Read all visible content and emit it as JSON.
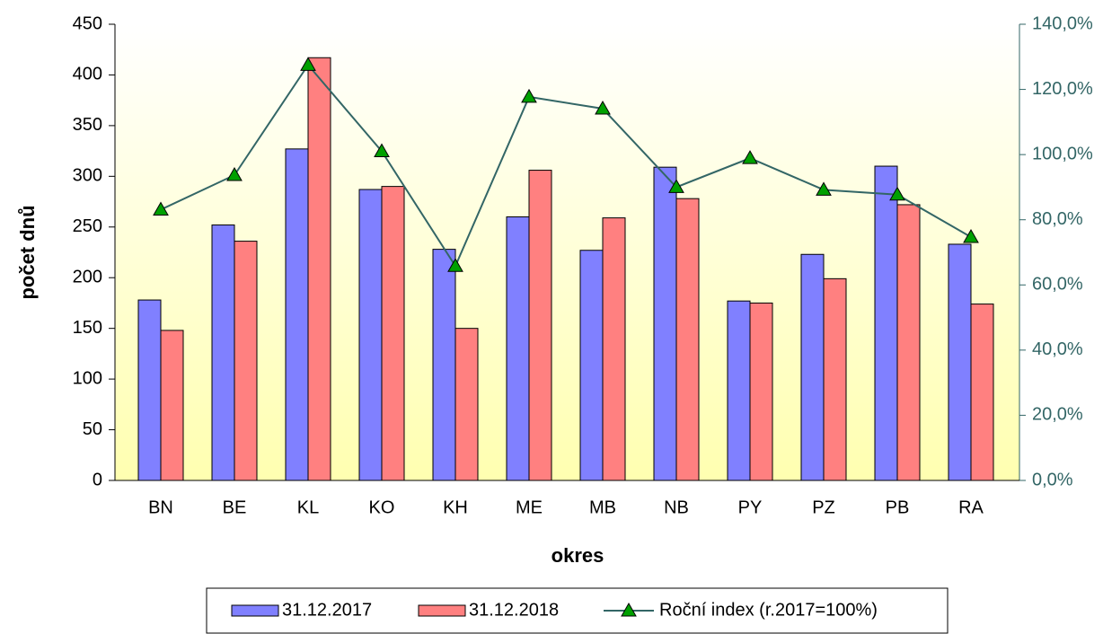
{
  "chart_data": {
    "type": "bar",
    "x_label": "okres",
    "y_label": "počet dnů",
    "categories": [
      "BN",
      "BE",
      "KL",
      "KO",
      "KH",
      "ME",
      "MB",
      "NB",
      "PY",
      "PZ",
      "PB",
      "RA"
    ],
    "series": [
      {
        "name": "31.12.2017",
        "color": "#8080ff",
        "values": [
          178,
          252,
          327,
          287,
          228,
          260,
          227,
          309,
          177,
          223,
          310,
          233
        ]
      },
      {
        "name": "31.12.2018",
        "color": "#ff8080",
        "values": [
          148,
          236,
          417,
          290,
          150,
          306,
          259,
          278,
          175,
          199,
          272,
          174
        ]
      },
      {
        "name": "Roční index (r.2017=100%)",
        "color": "#336666",
        "marker_color": "#00a000",
        "type": "line",
        "axis": "y2",
        "values": [
          83.1,
          93.7,
          127.5,
          101.0,
          65.8,
          117.7,
          114.1,
          90.0,
          98.9,
          89.2,
          87.7,
          74.7
        ]
      }
    ],
    "ylim": [
      0,
      450
    ],
    "yticks": [
      0,
      50,
      100,
      150,
      200,
      250,
      300,
      350,
      400,
      450
    ],
    "y2lim": [
      0,
      140
    ],
    "y2ticks": [
      {
        "value": 0,
        "label": "0,0%"
      },
      {
        "value": 20,
        "label": "20,0%"
      },
      {
        "value": 40,
        "label": "40,0%"
      },
      {
        "value": 60,
        "label": "60,0%"
      },
      {
        "value": 80,
        "label": "80,0%"
      },
      {
        "value": 100,
        "label": "100,0%"
      },
      {
        "value": 120,
        "label": "120,0%"
      },
      {
        "value": 140,
        "label": "140,0%"
      }
    ],
    "legend": "bottom"
  }
}
